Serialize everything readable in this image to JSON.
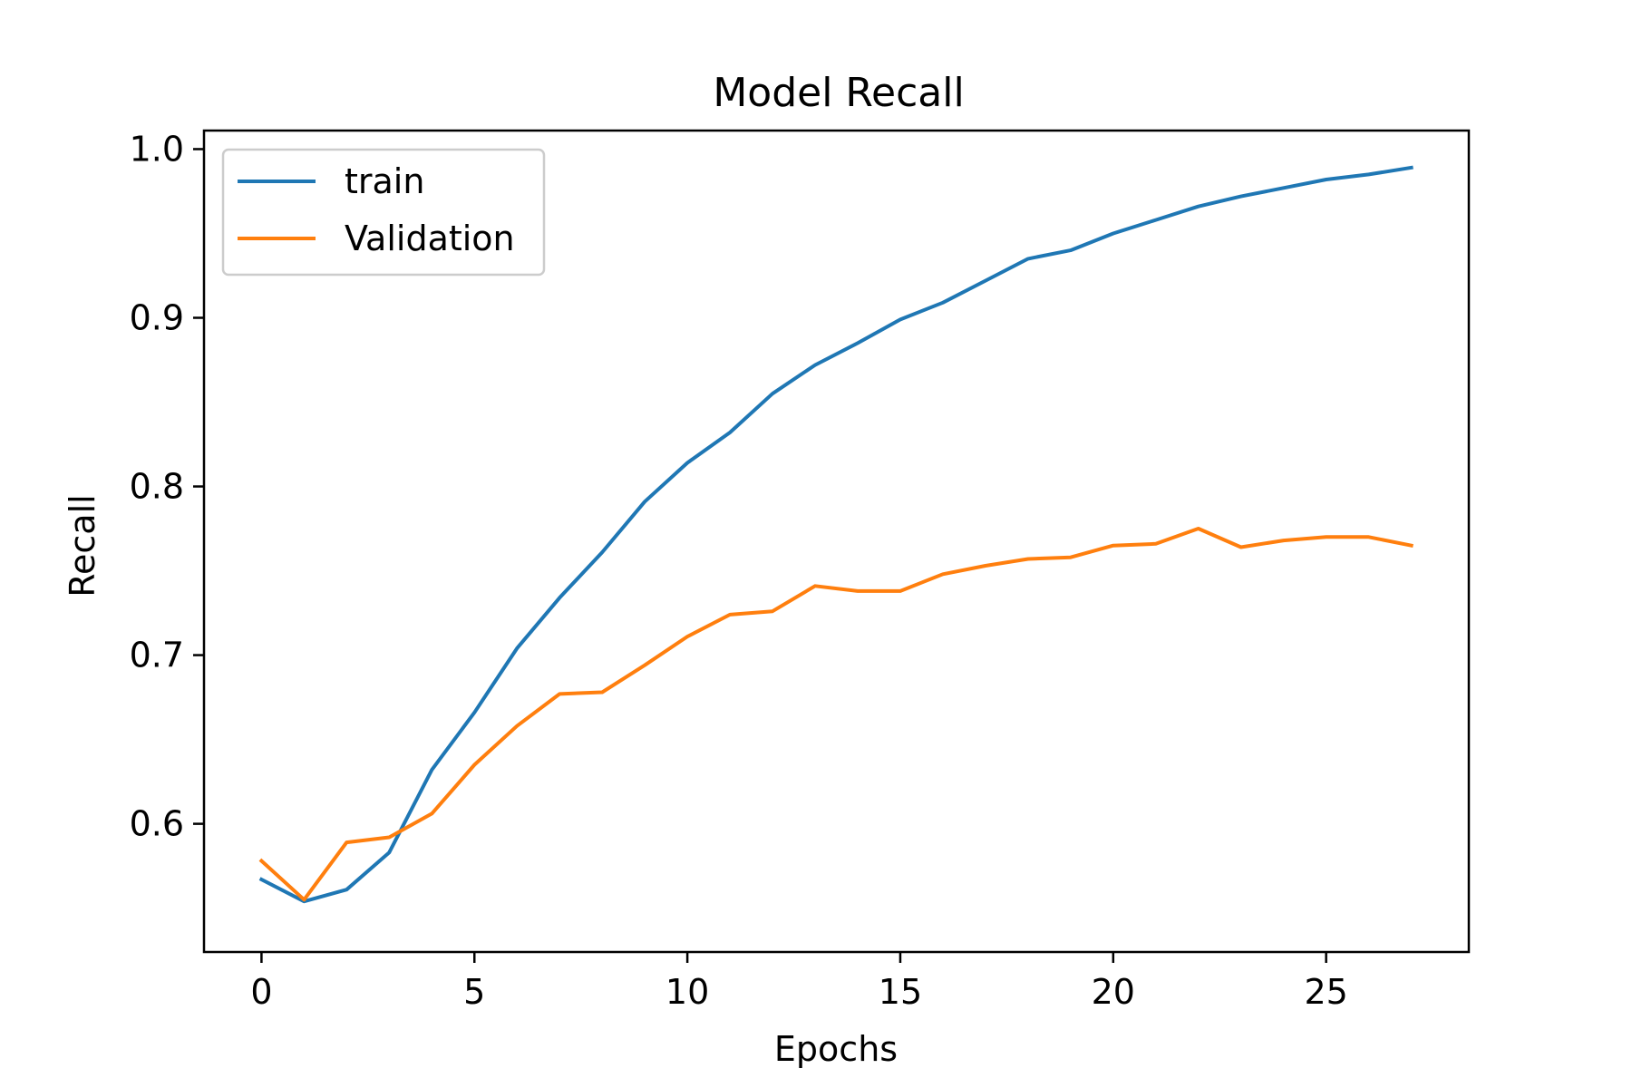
{
  "chart_data": {
    "type": "line",
    "title": "Model Recall",
    "xlabel": "Epochs",
    "ylabel": "Recall",
    "xlim": [
      -1.35,
      28.35
    ],
    "ylim": [
      0.524,
      1.011
    ],
    "xticks": [
      0,
      5,
      10,
      15,
      20,
      25
    ],
    "xtick_labels": [
      "0",
      "5",
      "10",
      "15",
      "20",
      "25"
    ],
    "yticks": [
      0.6,
      0.7,
      0.8,
      0.9,
      1.0
    ],
    "ytick_labels": [
      "0.6",
      "0.7",
      "0.8",
      "0.9",
      "1.0"
    ],
    "grid": false,
    "legend_position": "top-left",
    "x": [
      0,
      1,
      2,
      3,
      4,
      5,
      6,
      7,
      8,
      9,
      10,
      11,
      12,
      13,
      14,
      15,
      16,
      17,
      18,
      19,
      20,
      21,
      22,
      23,
      24,
      25,
      26,
      27
    ],
    "series": [
      {
        "name": "train",
        "color": "#1f77b4",
        "values": [
          0.567,
          0.554,
          0.561,
          0.583,
          0.632,
          0.666,
          0.704,
          0.734,
          0.761,
          0.791,
          0.814,
          0.832,
          0.855,
          0.872,
          0.885,
          0.899,
          0.909,
          0.922,
          0.935,
          0.94,
          0.95,
          0.958,
          0.966,
          0.972,
          0.977,
          0.982,
          0.985,
          0.989
        ]
      },
      {
        "name": "Validation",
        "color": "#ff7f0e",
        "values": [
          0.578,
          0.555,
          0.589,
          0.592,
          0.606,
          0.635,
          0.658,
          0.677,
          0.678,
          0.694,
          0.711,
          0.724,
          0.726,
          0.741,
          0.738,
          0.738,
          0.748,
          0.753,
          0.757,
          0.758,
          0.765,
          0.766,
          0.775,
          0.764,
          0.768,
          0.77,
          0.77,
          0.765
        ]
      }
    ]
  }
}
